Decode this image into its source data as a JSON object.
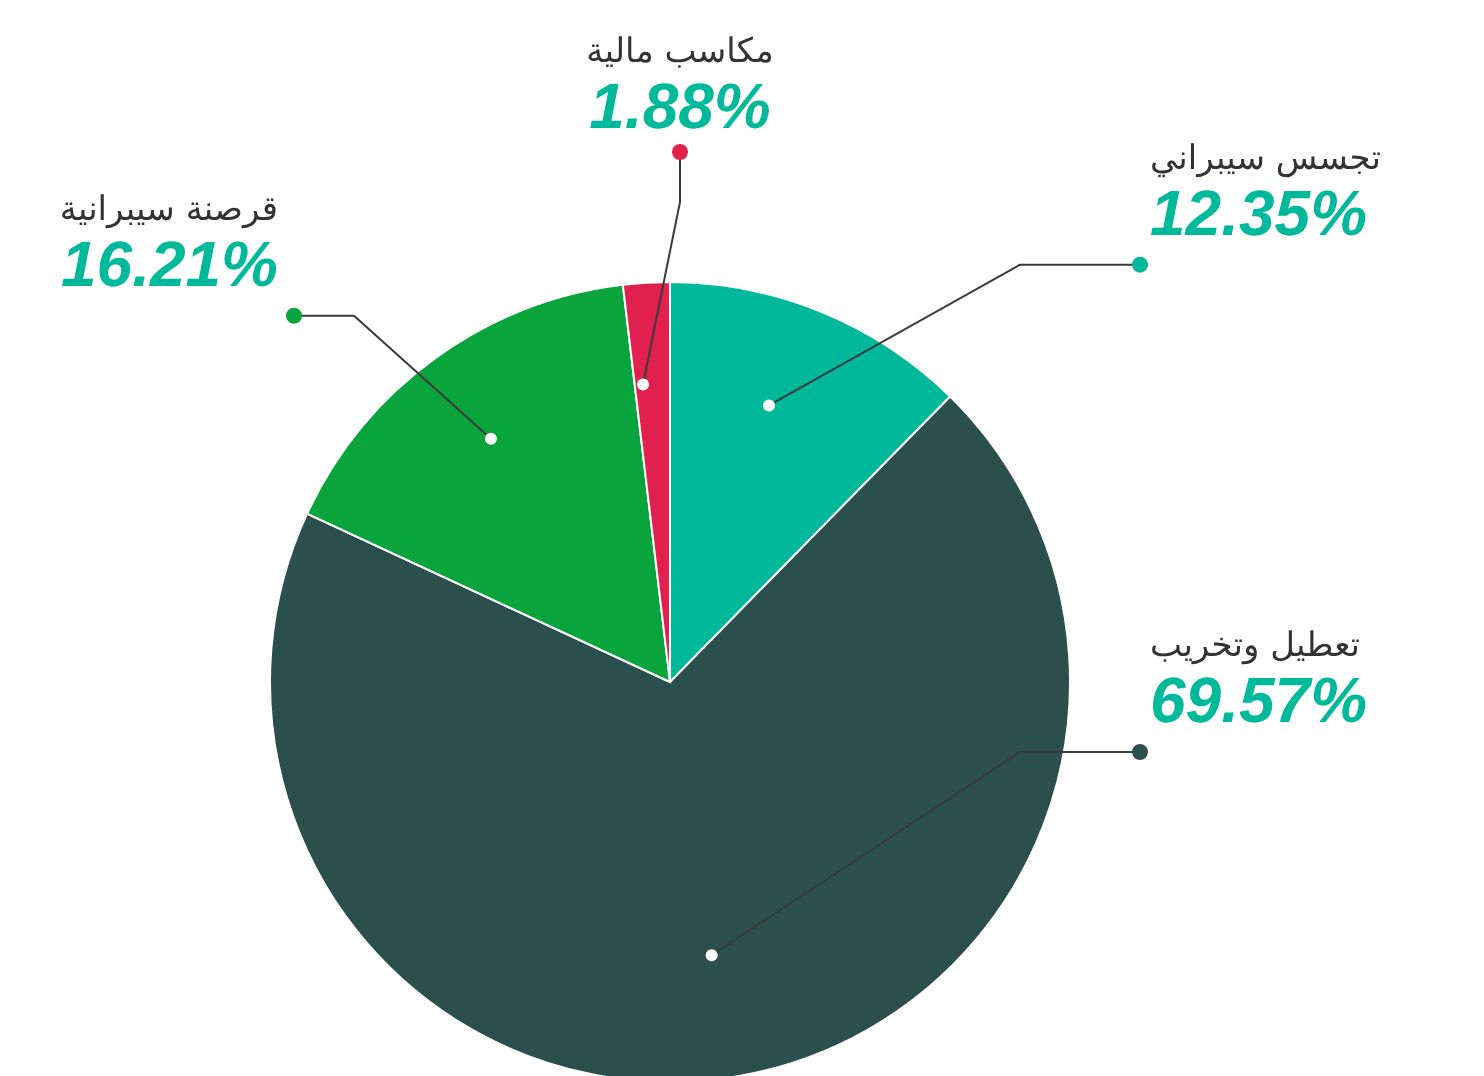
{
  "chart_data": {
    "type": "pie",
    "categories": [
      "تجسس سيبراني",
      "تعطيل وتخريب",
      "قرصنة سيبرانية",
      "مكاسب مالية"
    ],
    "values": [
      12.35,
      69.57,
      16.21,
      1.88
    ],
    "colors": [
      "#00b89a",
      "#2b4f4c",
      "#0aa43c",
      "#e2204e"
    ],
    "value_labels": [
      "12.35%",
      "69.57%",
      "16.21%",
      "1.88%"
    ],
    "legend": false
  }
}
